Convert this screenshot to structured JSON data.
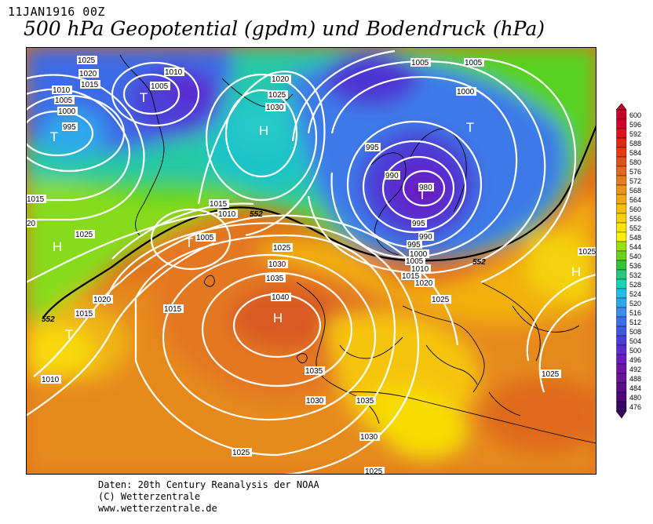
{
  "header": {
    "datetime": "11JAN1916 00Z",
    "title": "500 hPa Geopotential (gpdm) und Bodendruck (hPa)"
  },
  "footer": {
    "line1": "Daten: 20th Century Reanalysis der NOAA",
    "line2": "(C) Wetterzentrale",
    "line3": "www.wetterzentrale.de"
  },
  "legend": {
    "values": [
      "600",
      "596",
      "592",
      "588",
      "584",
      "580",
      "576",
      "572",
      "568",
      "564",
      "560",
      "556",
      "552",
      "548",
      "544",
      "540",
      "536",
      "532",
      "528",
      "524",
      "520",
      "516",
      "512",
      "508",
      "504",
      "500",
      "496",
      "492",
      "488",
      "484",
      "480",
      "476"
    ],
    "colors": [
      "#c8002a",
      "#d2002a",
      "#dc1420",
      "#e02818",
      "#e43c10",
      "#e0501c",
      "#e06820",
      "#e67c1c",
      "#ec9418",
      "#f0aa10",
      "#f4be0c",
      "#f8d208",
      "#fce400",
      "#fcf200",
      "#9ae014",
      "#6ad21c",
      "#30c436",
      "#26c87a",
      "#1ad2b6",
      "#1ec0e4",
      "#2ea8ec",
      "#3a8cf0",
      "#3c70e8",
      "#3e58e0",
      "#4640d6",
      "#5a2cd0",
      "#6a1cc0",
      "#7014a8",
      "#661498",
      "#5a0e88",
      "#4c0878",
      "#3a0466"
    ]
  },
  "map": {
    "centers": [
      {
        "label": "T",
        "kind": "low"
      },
      {
        "label": "T",
        "kind": "low"
      },
      {
        "label": "H",
        "kind": "high"
      },
      {
        "label": "T",
        "kind": "low"
      },
      {
        "label": "T",
        "kind": "low"
      },
      {
        "label": "H",
        "kind": "high"
      },
      {
        "label": "T",
        "kind": "low"
      },
      {
        "label": "H",
        "kind": "high"
      },
      {
        "label": "T",
        "kind": "low"
      },
      {
        "label": "H",
        "kind": "high"
      },
      {
        "label": "H",
        "kind": "high"
      }
    ],
    "isobar_labels": [
      "1025",
      "1020",
      "1015",
      "1010",
      "1005",
      "1000",
      "995",
      "1010",
      "1005",
      "1020",
      "1025",
      "1030",
      "1005",
      "1005",
      "1000",
      "995",
      "990",
      "980",
      "995",
      "990",
      "995",
      "1000",
      "1005",
      "1010",
      "1015",
      "1020",
      "1025",
      "1025",
      "1015",
      "1010",
      "1005",
      "1025",
      "1020",
      "1015",
      "1025",
      "1030",
      "1035",
      "1040",
      "1035",
      "1030",
      "1035",
      "1030",
      "1025",
      "1025",
      "1015",
      "1025",
      "1010",
      "1015",
      "20"
    ],
    "height_labels": [
      "552",
      "552",
      "552"
    ]
  }
}
